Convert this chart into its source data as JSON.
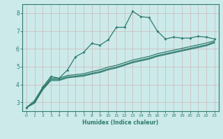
{
  "title": "",
  "xlabel": "Humidex (Indice chaleur)",
  "background_color": "#cceaea",
  "grid_color": "#aacccc",
  "line_color": "#2e7b6e",
  "xlim": [
    -0.5,
    23.5
  ],
  "ylim": [
    2.5,
    8.5
  ],
  "xticks": [
    0,
    1,
    2,
    3,
    4,
    5,
    6,
    7,
    8,
    9,
    10,
    11,
    12,
    13,
    14,
    15,
    16,
    17,
    18,
    19,
    20,
    21,
    22,
    23
  ],
  "yticks": [
    3,
    4,
    5,
    6,
    7,
    8
  ],
  "series1_x": [
    0,
    1,
    2,
    3,
    4,
    5,
    6,
    7,
    8,
    9,
    10,
    11,
    12,
    13,
    14,
    15,
    16,
    17,
    18,
    19,
    20,
    21,
    22,
    23
  ],
  "series1_y": [
    2.7,
    3.1,
    3.85,
    4.45,
    4.35,
    4.8,
    5.55,
    5.8,
    6.3,
    6.2,
    6.5,
    7.2,
    7.2,
    8.1,
    7.8,
    7.75,
    7.0,
    6.55,
    6.65,
    6.6,
    6.6,
    6.7,
    6.65,
    6.55
  ],
  "series2_x": [
    0,
    1,
    2,
    3,
    4,
    5,
    6,
    7,
    8,
    9,
    10,
    11,
    12,
    13,
    14,
    15,
    16,
    17,
    18,
    19,
    20,
    21,
    22,
    23
  ],
  "series2_y": [
    2.7,
    3.0,
    3.8,
    4.35,
    4.35,
    4.5,
    4.55,
    4.6,
    4.72,
    4.82,
    4.97,
    5.07,
    5.22,
    5.37,
    5.47,
    5.57,
    5.72,
    5.82,
    5.92,
    6.02,
    6.12,
    6.22,
    6.32,
    6.45
  ],
  "series3_x": [
    0,
    1,
    2,
    3,
    4,
    5,
    6,
    7,
    8,
    9,
    10,
    11,
    12,
    13,
    14,
    15,
    16,
    17,
    18,
    19,
    20,
    21,
    22,
    23
  ],
  "series3_y": [
    2.7,
    3.0,
    3.75,
    4.28,
    4.28,
    4.42,
    4.47,
    4.52,
    4.63,
    4.72,
    4.87,
    4.97,
    5.12,
    5.27,
    5.37,
    5.47,
    5.62,
    5.72,
    5.82,
    5.92,
    6.02,
    6.12,
    6.22,
    6.38
  ],
  "series4_x": [
    0,
    1,
    2,
    3,
    4,
    5,
    6,
    7,
    8,
    9,
    10,
    11,
    12,
    13,
    14,
    15,
    16,
    17,
    18,
    19,
    20,
    21,
    22,
    23
  ],
  "series4_y": [
    2.7,
    2.95,
    3.7,
    4.22,
    4.22,
    4.37,
    4.42,
    4.47,
    4.58,
    4.67,
    4.82,
    4.92,
    5.07,
    5.22,
    5.32,
    5.42,
    5.57,
    5.67,
    5.77,
    5.87,
    5.97,
    6.07,
    6.17,
    6.33
  ]
}
